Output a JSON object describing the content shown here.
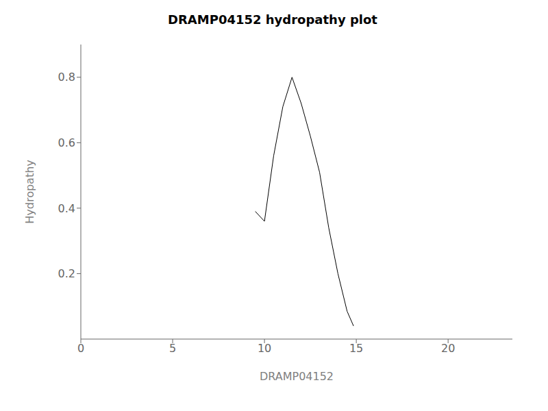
{
  "chart_data": {
    "type": "line",
    "title": "DRAMP04152 hydropathy plot",
    "xlabel": "DRAMP04152",
    "ylabel": "Hydropathy",
    "x": [
      9.5,
      10.0,
      10.5,
      11.0,
      11.5,
      12.0,
      12.5,
      13.0,
      13.5,
      14.0,
      14.5,
      14.85
    ],
    "values": [
      0.39,
      0.36,
      0.56,
      0.71,
      0.8,
      0.72,
      0.62,
      0.51,
      0.34,
      0.2,
      0.085,
      0.04
    ],
    "color": "#000000",
    "xlim": [
      0,
      23.5
    ],
    "ylim": [
      0.0,
      0.9
    ],
    "xticks": [
      0,
      5,
      10,
      15,
      20
    ],
    "yticks": [
      0.2,
      0.4,
      0.6,
      0.8
    ],
    "grid": false
  }
}
